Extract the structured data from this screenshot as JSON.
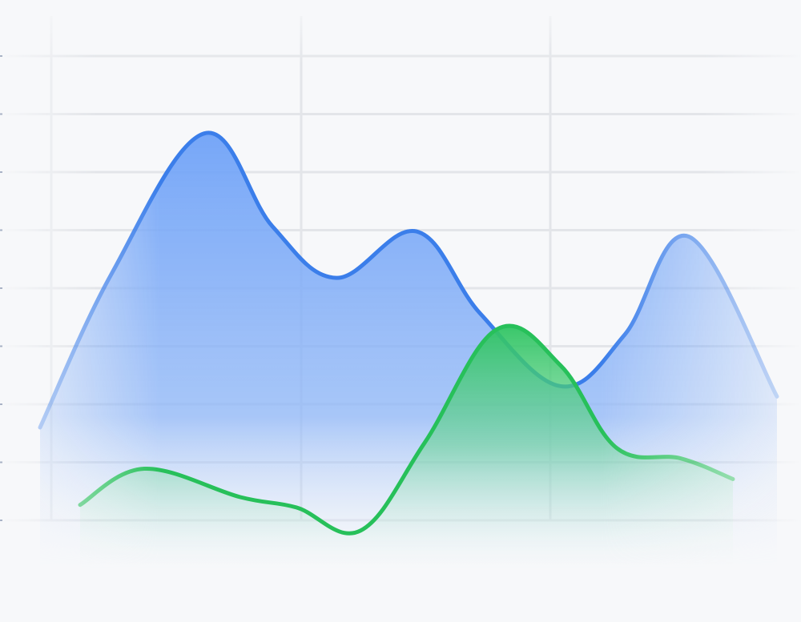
{
  "chart_data": {
    "type": "area",
    "grid": true,
    "legend": "none",
    "ylim": [
      0,
      9
    ],
    "series": [
      {
        "color": "#3b7eea",
        "fill_color": "#6fa2f7",
        "x": [
          0.05,
          0.14,
          0.255,
          0.34,
          0.42,
          0.52,
          0.6,
          0.7,
          0.78,
          0.86,
          0.97
        ],
        "values": [
          1.8,
          4.8,
          7.5,
          5.7,
          4.7,
          5.6,
          4.0,
          2.6,
          3.6,
          5.5,
          2.4
        ]
      },
      {
        "color": "#27c05a",
        "fill_color": "#2fc462",
        "x": [
          0.1,
          0.18,
          0.3,
          0.37,
          0.45,
          0.53,
          0.62,
          0.7,
          0.77,
          0.85,
          0.915
        ],
        "values": [
          0.3,
          1.0,
          0.45,
          0.25,
          -0.2,
          1.5,
          3.7,
          3.0,
          1.4,
          1.2,
          0.8
        ]
      }
    ]
  }
}
